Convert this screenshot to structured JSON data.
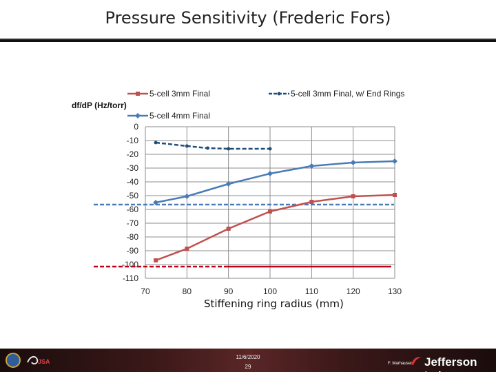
{
  "title": "Pressure Sensitivity (Frederic Fors)",
  "chart_data": {
    "type": "line",
    "ylabel": "df/dP (Hz/torr)",
    "xlabel": "Stiffening ring radius (mm)",
    "xlim": [
      70,
      130
    ],
    "ylim": [
      -110,
      0
    ],
    "xticks": [
      70,
      80,
      90,
      100,
      110,
      120,
      130
    ],
    "yticks": [
      0,
      -10,
      -20,
      -30,
      -40,
      -50,
      -60,
      -70,
      -80,
      -90,
      -100,
      -110
    ],
    "ytick_labels": [
      "0",
      "-10",
      "-20",
      "-30",
      "-40",
      "-50",
      "-60",
      "-70",
      "-80",
      "-90",
      "-100",
      "-110"
    ],
    "grid": true,
    "legend_position": "top",
    "series": [
      {
        "name": "5-cell 3mm Final",
        "color": "#c0504d",
        "marker": "square",
        "dash": "solid",
        "x": [
          72.5,
          80,
          90,
          100,
          110,
          120,
          130
        ],
        "y": [
          -97,
          -88.5,
          -74,
          -61.5,
          -54.5,
          -50.5,
          -49.5
        ]
      },
      {
        "name": "5-cell 3mm Final, w/ End Rings",
        "color": "#1f4e79",
        "marker": "circle",
        "dash": "dashed",
        "x": [
          72.5,
          80,
          85,
          90,
          100
        ],
        "y": [
          -11.5,
          -14,
          -15.5,
          -16,
          -16
        ]
      },
      {
        "name": "5-cell 4mm Final",
        "color": "#4a7bb7",
        "marker": "diamond",
        "dash": "solid",
        "x": [
          72.5,
          80,
          90,
          100,
          110,
          120,
          130
        ],
        "y": [
          -55,
          -50.5,
          -41.5,
          -34,
          -28.5,
          -26,
          -25
        ]
      }
    ],
    "reference_lines": [
      {
        "color": "#4a7bb7",
        "y": -56.5,
        "dash": "dashed"
      },
      {
        "color": "#c0001a",
        "y": -101.5,
        "dash": "dashed-solid"
      }
    ]
  },
  "footer": {
    "date": "11/6/2020",
    "page": "29",
    "author": "F. Marhauser",
    "lab": "Jefferson Lab"
  }
}
